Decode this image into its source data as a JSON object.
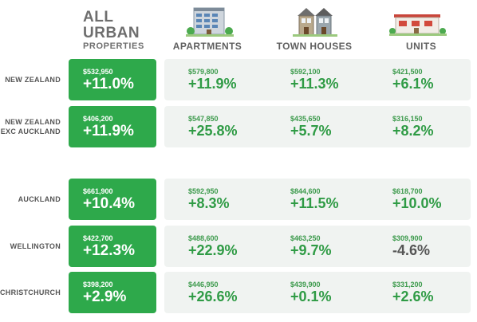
{
  "header": {
    "all_line1": "ALL",
    "all_line2": "URBAN",
    "all_line3": "PROPERTIES",
    "col_apartments": "APARTMENTS",
    "col_townhouses": "TOWN HOUSES",
    "col_units": "UNITS"
  },
  "icons": {
    "apartments": "apartment-building-icon",
    "townhouses": "town-houses-icon",
    "units": "units-building-icon"
  },
  "colors": {
    "green": "#2ea94b",
    "panel": "#f0f3f1",
    "positive_text": "#2f9b45",
    "negative_text": "#555555"
  },
  "chart_data": {
    "type": "table",
    "columns": [
      "ALL URBAN PROPERTIES",
      "APARTMENTS",
      "TOWN HOUSES",
      "UNITS"
    ],
    "rows": [
      {
        "label_lines": [
          "NEW ZEALAND"
        ],
        "cells": [
          {
            "price": "$532,950",
            "change": "+11.0%"
          },
          {
            "price": "$579,800",
            "change": "+11.9%"
          },
          {
            "price": "$592,100",
            "change": "+11.3%"
          },
          {
            "price": "$421,500",
            "change": "+6.1%"
          }
        ]
      },
      {
        "label_lines": [
          "NEW ZEALAND",
          "EXC AUCKLAND"
        ],
        "cells": [
          {
            "price": "$406,200",
            "change": "+11.9%"
          },
          {
            "price": "$547,850",
            "change": "+25.8%"
          },
          {
            "price": "$435,650",
            "change": "+5.7%"
          },
          {
            "price": "$316,150",
            "change": "+8.2%"
          }
        ]
      },
      {
        "label_lines": [
          "AUCKLAND"
        ],
        "cells": [
          {
            "price": "$661,900",
            "change": "+10.4%"
          },
          {
            "price": "$592,950",
            "change": "+8.3%"
          },
          {
            "price": "$844,600",
            "change": "+11.5%"
          },
          {
            "price": "$618,700",
            "change": "+10.0%"
          }
        ]
      },
      {
        "label_lines": [
          "WELLINGTON"
        ],
        "cells": [
          {
            "price": "$422,700",
            "change": "+12.3%"
          },
          {
            "price": "$488,600",
            "change": "+22.9%"
          },
          {
            "price": "$463,250",
            "change": "+9.7%"
          },
          {
            "price": "$309,900",
            "change": "-4.6%"
          }
        ]
      },
      {
        "label_lines": [
          "CHRISTCHURCH"
        ],
        "cells": [
          {
            "price": "$398,200",
            "change": "+2.9%"
          },
          {
            "price": "$446,950",
            "change": "+26.6%"
          },
          {
            "price": "$439,900",
            "change": "+0.1%"
          },
          {
            "price": "$331,200",
            "change": "+2.6%"
          }
        ]
      }
    ]
  }
}
